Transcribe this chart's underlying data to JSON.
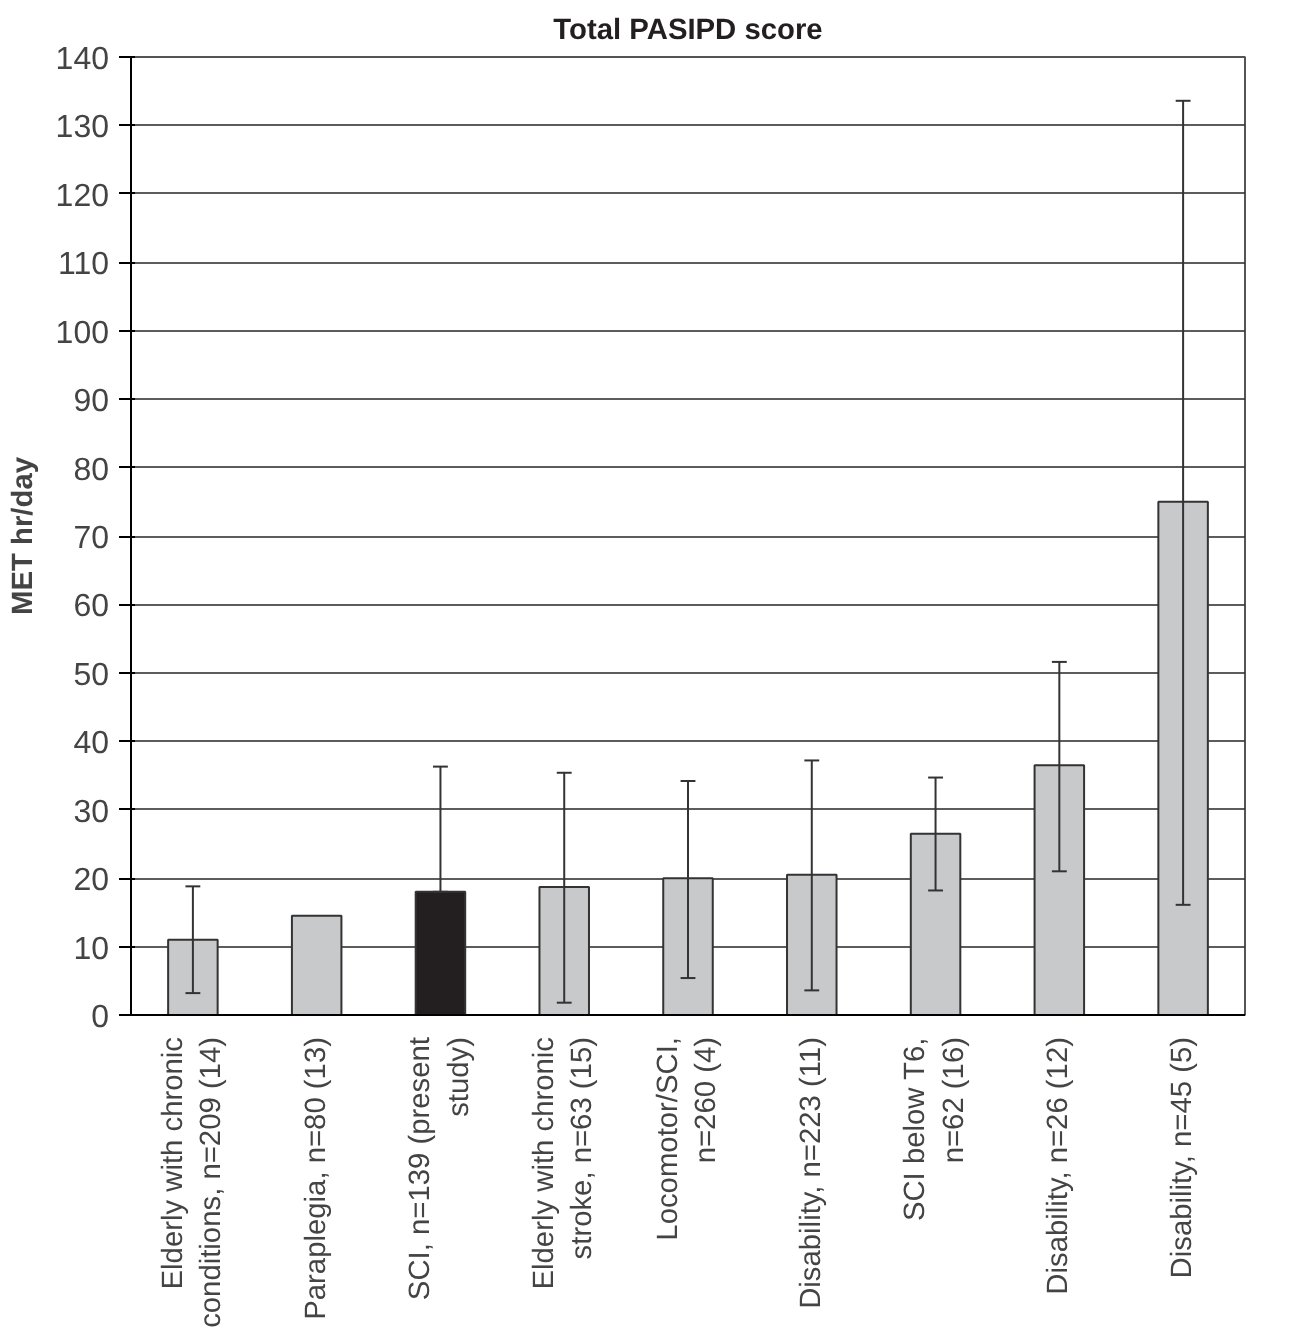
{
  "chart_data": {
    "type": "bar",
    "title": "Total PASIPD score",
    "ylabel": "MET hr/day",
    "categories": [
      "Elderly with chronic\nconditions, n=209 (14)",
      "Paraplegia, n=80 (13)",
      "SCI, n=139 (present\nstudy)",
      "Elderly with chronic\nstroke, n=63 (15)",
      "Locomotor/SCI,\nn=260 (4)",
      "Disability, n=223 (11)",
      "SCI below T6,\nn=62 (16)",
      "Disability, n=26 (12)",
      "Disability, n=45 (5)"
    ],
    "values": [
      11,
      14.5,
      18,
      18.7,
      20,
      20.5,
      26.5,
      36.5,
      75
    ],
    "colors": [
      "#c8c9cb",
      "#c8c9cb",
      "#231f20",
      "#c8c9cb",
      "#c8c9cb",
      "#c8c9cb",
      "#c8c9cb",
      "#c8c9cb",
      "#c8c9cb"
    ],
    "errors": [
      [
        3.2,
        18.8
      ],
      null,
      [
        18,
        36.3
      ],
      [
        1.8,
        35.4
      ],
      [
        5.4,
        34.2
      ],
      [
        3.6,
        37.2
      ],
      [
        18.2,
        34.7
      ],
      [
        21,
        51.6
      ],
      [
        16.1,
        133.6
      ]
    ],
    "ylim": [
      0,
      140
    ],
    "yticks": [
      0,
      10,
      20,
      30,
      40,
      50,
      60,
      70,
      80,
      90,
      100,
      110,
      120,
      130,
      140
    ],
    "grid": "y"
  }
}
